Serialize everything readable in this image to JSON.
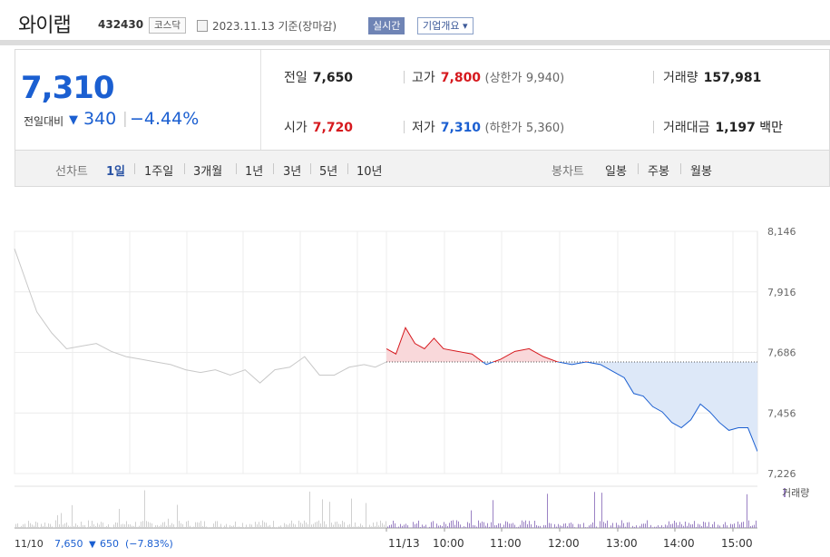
{
  "header": {
    "stock_name": "와이랩",
    "stock_code": "432430",
    "market": "코스닥",
    "date": "2023.11.13 기준(장마감)",
    "realtime_label": "실시간",
    "company_info_label": "기업개요 ▾"
  },
  "quote": {
    "price": "7,310",
    "change_label": "전일대비",
    "change_arrow": "▼",
    "change": "340",
    "change_pct": "−4.44%",
    "prev_label": "전일",
    "prev": "7,650",
    "high_label": "고가",
    "high": "7,800",
    "upper_label": "(상한가",
    "upper": "9,940)",
    "volume_label": "거래량",
    "volume": "157,981",
    "open_label": "시가",
    "open": "7,720",
    "low_label": "저가",
    "low": "7,310",
    "lower_label": "(하한가",
    "lower": "5,360)",
    "value_label": "거래대금",
    "value": "1,197",
    "value_unit": "백만"
  },
  "tabs": {
    "line_label": "선차트",
    "line_items": [
      "1일",
      "1주일",
      "3개월",
      "1년",
      "3년",
      "5년",
      "10년"
    ],
    "active_line": "1일",
    "candle_label": "봉차트",
    "candle_items": [
      "일봉",
      "주봉",
      "월봉"
    ]
  },
  "colors": {
    "up": "#d6191e",
    "down": "#1b5fd1",
    "prev_day_line": "#c8c8c8",
    "down_fill": "#dde8f8",
    "up_fill": "#f9d8da",
    "volume_today": "#9b82c4",
    "volume_prev": "#d0d0d0"
  },
  "chart_data": {
    "type": "line",
    "y_ticks": [
      "8,146",
      "7,916",
      "7,686",
      "7,456",
      "7,226"
    ],
    "ylim": [
      7226,
      8146
    ],
    "prev_close": 7650,
    "x_labels": [
      "11/13",
      "10:00",
      "11:00",
      "12:00",
      "13:00",
      "14:00",
      "15:00"
    ],
    "prev_day_label": "11/10",
    "prev_day_close": "7,650",
    "prev_day_arrow": "▼",
    "prev_day_change": "650",
    "prev_day_pct": "(−7.83%)",
    "volume_legend": "거래량",
    "series": [
      {
        "name": "11/10",
        "x": [
          0,
          0.03,
          0.06,
          0.1,
          0.14,
          0.18,
          0.22,
          0.26,
          0.3,
          0.34,
          0.38,
          0.42,
          0.46,
          0.5,
          0.54,
          0.58,
          0.62,
          0.66,
          0.7,
          0.74,
          0.78,
          0.82,
          0.86,
          0.9,
          0.94,
          0.97,
          1
        ],
        "y": [
          8080,
          7960,
          7840,
          7760,
          7700,
          7710,
          7720,
          7690,
          7670,
          7660,
          7650,
          7640,
          7620,
          7610,
          7620,
          7600,
          7620,
          7570,
          7620,
          7630,
          7670,
          7600,
          7600,
          7630,
          7640,
          7630,
          7650
        ]
      },
      {
        "name": "11/13",
        "x": [
          "09:00",
          "09:10",
          "09:20",
          "09:30",
          "09:40",
          "09:50",
          "10:00",
          "10:15",
          "10:30",
          "10:45",
          "11:00",
          "11:15",
          "11:30",
          "11:45",
          "12:00",
          "12:15",
          "12:30",
          "12:45",
          "13:00",
          "13:10",
          "13:20",
          "13:30",
          "13:40",
          "13:50",
          "14:00",
          "14:10",
          "14:20",
          "14:30",
          "14:40",
          "14:50",
          "15:00",
          "15:10",
          "15:20",
          "15:30"
        ],
        "y": [
          7700,
          7680,
          7780,
          7720,
          7700,
          7740,
          7700,
          7690,
          7680,
          7640,
          7660,
          7690,
          7700,
          7670,
          7650,
          7640,
          7650,
          7640,
          7610,
          7590,
          7530,
          7520,
          7480,
          7460,
          7420,
          7400,
          7430,
          7490,
          7460,
          7420,
          7390,
          7400,
          7400,
          7310
        ]
      }
    ]
  }
}
